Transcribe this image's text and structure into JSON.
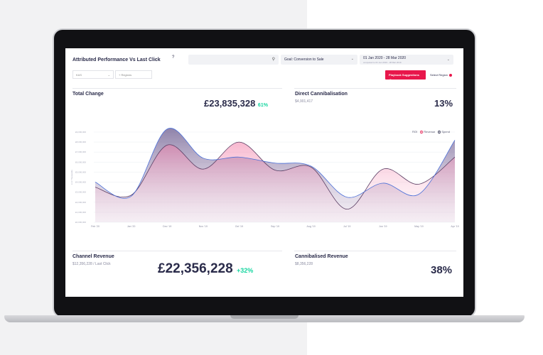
{
  "header": {
    "title": "Attributed Performance Vs Last Click",
    "info_glyph": "?",
    "search_icon": "search-icon",
    "goal_select": "Goal: Conversion to Sale",
    "date_range": "01 Jan 2020 - 28 Mar 2020",
    "date_compare": "compared to 01 Jan 2019 - 28 Mar 2019",
    "chevron": "⌄"
  },
  "filters": {
    "channel": "KAS",
    "regions": "+ Regions",
    "playbook_label": "Playbook Suggestions →",
    "select_region": "Select Region"
  },
  "total_change": {
    "label": "Total Change",
    "value": "£23,835,328",
    "change": "61%"
  },
  "direct_cannibalisation": {
    "label": "Direct Cannibalisation",
    "sub": "$4,901,417",
    "value": "13%"
  },
  "channel_revenue": {
    "label": "Channel Revenue",
    "sub": "$12,356,228 / Last Click",
    "value": "£22,356,228",
    "change": "+32%"
  },
  "cannibalised_revenue": {
    "label": "Cannibalised Revenue",
    "sub": "$8,356,228",
    "value": "38%"
  },
  "legend": {
    "roi": "ROI",
    "revenue": "Revenue",
    "spend": "Spend"
  },
  "chart_data": {
    "type": "area",
    "categories": [
      "Feb '20",
      "Jan '20",
      "Dec '19",
      "Nov '19",
      "Oct '19",
      "Sep '19",
      "Aug '19",
      "Jul '19",
      "Jun '19",
      "May '19",
      "Apr '19"
    ],
    "y_ticks": [
      "£0,000,000",
      "£1,000,000",
      "£2,000,000",
      "£3,000,000",
      "£4,000,000",
      "£5,000,000",
      "£6,000,000",
      "£7,000,000",
      "£8,000,000",
      "£9,000,000"
    ],
    "ylabel": "£ in Thousands",
    "ylim": [
      0,
      9000000
    ],
    "series": [
      {
        "name": "Revenue",
        "color": "#e84a8a",
        "values": [
          3500000,
          2700000,
          7700000,
          5300000,
          8000000,
          5200000,
          5500000,
          1300000,
          5300000,
          3800000,
          6500000
        ]
      },
      {
        "name": "Spend",
        "color": "#2a2b4a",
        "values": [
          4000000,
          2600000,
          9300000,
          6400000,
          6500000,
          5900000,
          5600000,
          2500000,
          3900000,
          2800000,
          8200000
        ]
      }
    ],
    "colors": {
      "revenue": "#e8174b",
      "spend": "#4a6fd8",
      "fill_top": "#8b6b9e"
    }
  }
}
